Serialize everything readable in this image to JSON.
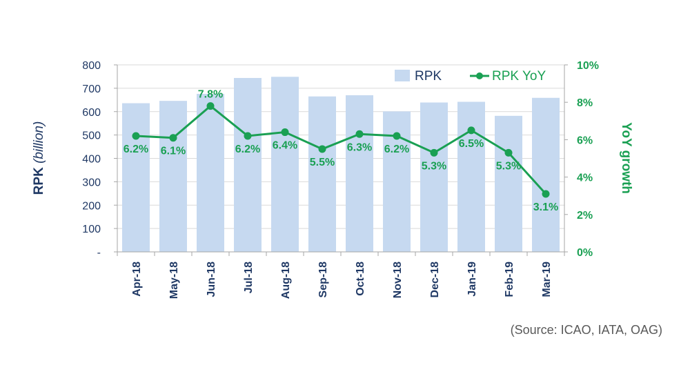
{
  "chart_data": {
    "type": "bar",
    "categories": [
      "Apr-18",
      "May-18",
      "Jun-18",
      "Jul-18",
      "Aug-18",
      "Sep-18",
      "Oct-18",
      "Nov-18",
      "Dec-18",
      "Jan-19",
      "Feb-19",
      "Mar-19"
    ],
    "series": [
      {
        "name": "RPK",
        "type": "bar",
        "axis": "left",
        "values": [
          636,
          646,
          676,
          744,
          749,
          665,
          670,
          601,
          639,
          642,
          582,
          659
        ]
      },
      {
        "name": "RPK YoY",
        "type": "line",
        "axis": "right",
        "values": [
          6.2,
          6.1,
          7.8,
          6.2,
          6.4,
          5.5,
          6.3,
          6.2,
          5.3,
          6.5,
          5.3,
          3.1
        ],
        "labels": [
          "6.2%",
          "6.1%",
          "7.8%",
          "6.2%",
          "6.4%",
          "5.5%",
          "6.3%",
          "6.2%",
          "5.3%",
          "6.5%",
          "5.3%",
          "3.1%"
        ]
      }
    ],
    "y_left": {
      "label_main": "RPK ",
      "label_italic": "(billion)",
      "min": 0,
      "max": 800,
      "ticks": [
        "-",
        "100",
        "200",
        "300",
        "400",
        "500",
        "600",
        "700",
        "800"
      ]
    },
    "y_right": {
      "label": "YoY growth",
      "min": 0,
      "max": 10,
      "ticks": [
        "0%",
        "2%",
        "4%",
        "6%",
        "8%",
        "10%"
      ]
    },
    "legend_position": "top-right",
    "colors": {
      "bar": "#c6d9f0",
      "line": "#1aa053",
      "axis_text": "#1f3864",
      "right_axis_text": "#1aa053",
      "grid": "#d9d9d9"
    }
  },
  "source": "(Source: ICAO, IATA, OAG)"
}
